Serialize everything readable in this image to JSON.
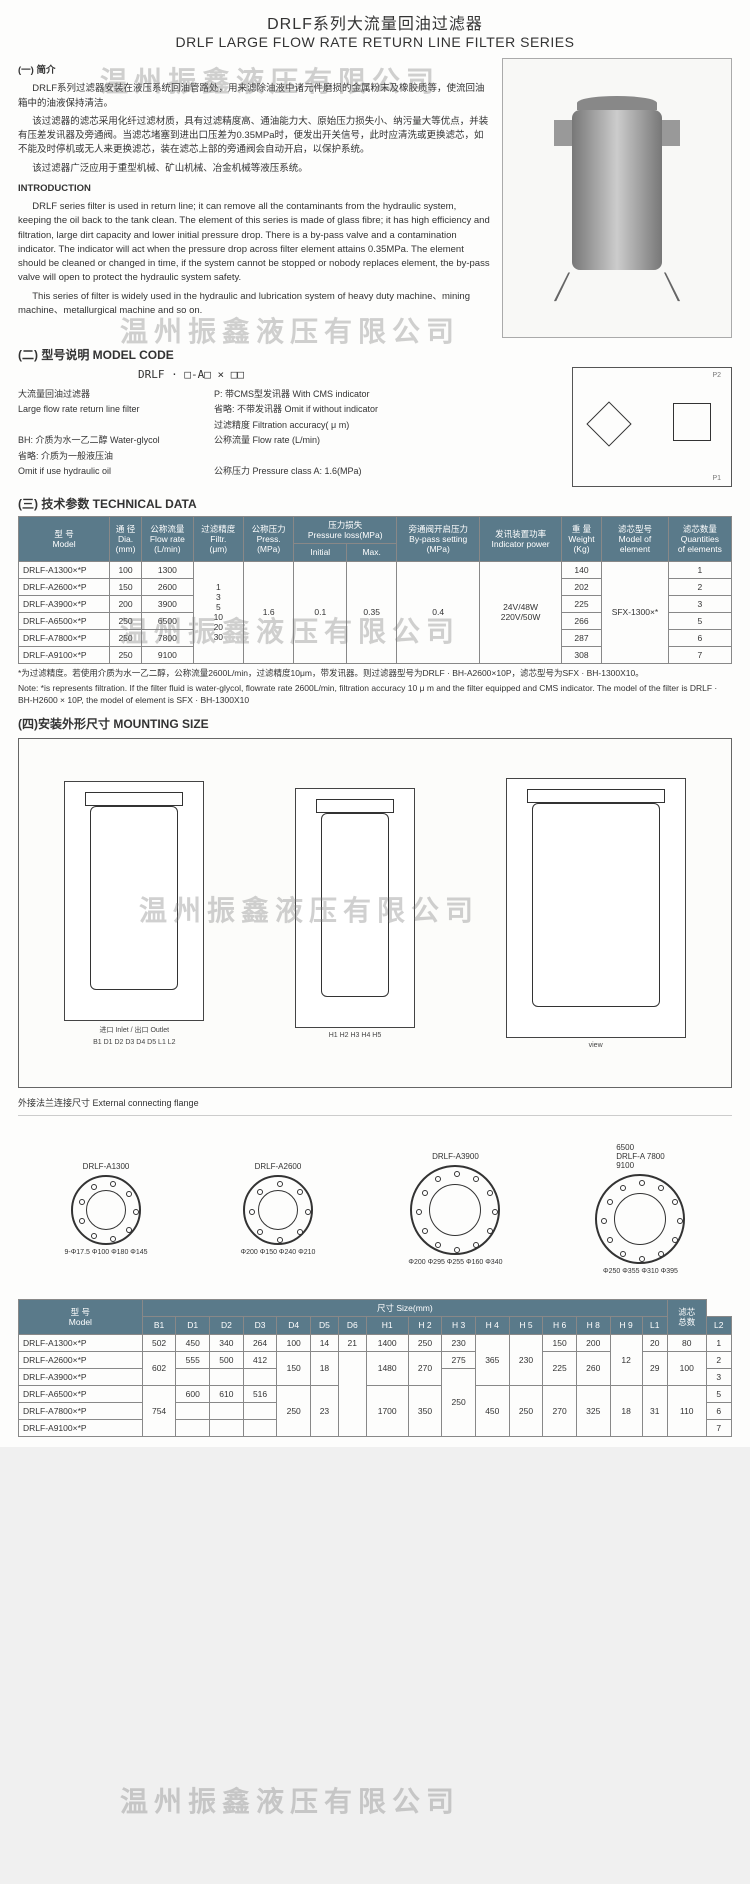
{
  "title": {
    "cn": "DRLF系列大流量回油过滤器",
    "en": "DRLF  LARGE FLOW RATE RETURN LINE FILTER SERIES"
  },
  "watermark": "温州振鑫液压有限公司",
  "section1": {
    "head": "(一) 简介",
    "p1": "DRLF系列过滤器安装在液压系统回油管路处，用来滤除油液中诸元件磨损的金属粉末及橡胶质等，使流回油箱中的油液保持清洁。",
    "p2": "该过滤器的滤芯采用化纤过滤材质，具有过滤精度高、通油能力大、原始压力损失小、纳污量大等优点，并装有压差发讯器及旁通阀。当滤芯堵塞到进出口压差为0.35MPa时，便发出开关信号，此时应清洗或更换滤芯，如不能及时停机或无人来更换滤芯，装在滤芯上部的旁通阀会自动开启，以保护系统。",
    "p3": "该过滤器广泛应用于重型机械、矿山机械、冶金机械等液压系统。",
    "head_en": "INTRODUCTION",
    "pe1": "DRLF series filter is used in return line; it can remove all the contaminants from the hydraulic system, keeping the oil back to the tank clean. The element of this series is made of glass fibre; it has high efficiency and filtration, large dirt capacity and lower initial pressure drop. There is a by-pass valve and a contamination indicator. The indicator will act when the pressure drop across filter element attains 0.35MPa. The element should be cleaned or changed in time, if the system cannot be stopped or nobody replaces element, the by-pass valve will open to protect the hydraulic system safety.",
    "pe2": "This series of filter is widely used in the hydraulic and lubrication system of heavy duty machine、mining machine、metallurgical machine and so on."
  },
  "section2": {
    "head": "(二) 型号说明    MODEL CODE",
    "code": "DRLF · □-A□ × □□",
    "rows": [
      {
        "l": "大流量回油过滤器",
        "r": "P: 带CMS型发讯器  With CMS indicator"
      },
      {
        "l": "Large flow rate return line filter",
        "r": "省略: 不带发讯器  Omit if without indicator"
      },
      {
        "l": "",
        "r": "过滤精度  Filtration accuracy( μ m)"
      },
      {
        "l": "BH: 介质为水一乙二醇  Water-glycol",
        "r": "公称流量  Flow rate (L/min)"
      },
      {
        "l": "省略: 介质为一般液压油",
        "r": ""
      },
      {
        "l": "Omit if use hydraulic oil",
        "r": "公称压力  Pressure class A: 1.6(MPa)"
      }
    ]
  },
  "section3": {
    "head": "(三) 技术参数  TECHNICAL DATA",
    "headers": [
      "型 号\nModel",
      "通 径\nDia.\n(mm)",
      "公称流量\nFlow rate\n(L/min)",
      "过滤精度\nFiltr.\n(μm)",
      "公称压力\nPress.\n(MPa)",
      "压力损失\nPressure loss(MPa)",
      "旁通阀开启压力\nBy-pass setting\n(MPa)",
      "发讯装置功率\nIndicator power",
      "重 量\nWeight\n(Kg)",
      "滤芯型号\nModel of\nelement",
      "滤芯数量\nQuantities\nof elements"
    ],
    "plHeaders": [
      "Initial",
      "Max."
    ],
    "rows": [
      {
        "m": "DRLF-A1300×*P",
        "dia": "100",
        "flow": "1300",
        "wt": "140",
        "qty": "1"
      },
      {
        "m": "DRLF-A2600×*P",
        "dia": "150",
        "flow": "2600",
        "wt": "202",
        "qty": "2"
      },
      {
        "m": "DRLF-A3900×*P",
        "dia": "200",
        "flow": "3900",
        "wt": "225",
        "qty": "3"
      },
      {
        "m": "DRLF-A6500×*P",
        "dia": "250",
        "flow": "6500",
        "wt": "266",
        "qty": "5"
      },
      {
        "m": "DRLF-A7800×*P",
        "dia": "250",
        "flow": "7800",
        "wt": "287",
        "qty": "6"
      },
      {
        "m": "DRLF-A9100×*P",
        "dia": "250",
        "flow": "9100",
        "wt": "308",
        "qty": "7"
      }
    ],
    "filtr": "1\n3\n5\n10\n20\n30",
    "press": "1.6",
    "plInit": "0.1",
    "plMax": "0.35",
    "bypass": "0.4",
    "power": "24V/48W\n220V/50W",
    "element": "SFX-1300×*",
    "note_cn": "*为过滤精度。若使用介质为水一乙二醇，公称流量2600L/min，过滤精度10μm，带发讯器。则过滤器型号为DRLF · BH-A2600×10P，滤芯型号为SFX · BH-1300X10。",
    "note_en": "Note: *is represents filtration. If the filter fluid is water-glycol, flowrate rate 2600L/min, filtration accuracy 10 μ m and the filter equipped and  CMS indicator. The model of the filter is DRLF · BH-H2600 × 10P, the model of element is SFX · BH-1300X10"
  },
  "section4": {
    "head": "(四)安装外形尺寸    MOUNTING SIZE",
    "flange_label": "外接法兰连接尺寸      External connecting flange",
    "flanges": [
      {
        "label": "DRLF-A1300",
        "dims": [
          "9-Φ17.5",
          "Φ100",
          "Φ180",
          "Φ145"
        ]
      },
      {
        "label": "DRLF-A2600",
        "dims": [
          "Φ200",
          "Φ150",
          "Φ240",
          "Φ210"
        ]
      },
      {
        "label": "DRLF-A3900",
        "dims": [
          "Φ200",
          "Φ295",
          "Φ255",
          "Φ160",
          "Φ340"
        ]
      },
      {
        "label": "6500\nDRLF-A 7800\n9100",
        "dims": [
          "Φ250",
          "Φ355",
          "Φ310",
          "Φ395"
        ]
      }
    ]
  },
  "section5": {
    "headers": [
      "型 号\nModel",
      "B1",
      "D1",
      "D2",
      "D3",
      "D4",
      "D5",
      "D6",
      "H1",
      "H 2",
      "H 3",
      "H 4",
      "H 5",
      "H 6",
      "H 8",
      "H 9",
      "L1",
      "L2",
      "滤芯\n总数"
    ],
    "sizeLabel": "尺寸 Size(mm)",
    "rows": [
      {
        "m": "DRLF-A1300×*P",
        "b1": "502",
        "d1": "450",
        "d2": "340",
        "d3": "264",
        "d4": "100",
        "d5": "14",
        "d6": "21",
        "h1": "1400",
        "h2": "250",
        "h3": "230",
        "h6": "150",
        "h8": "200",
        "l1": "20",
        "l2": "80",
        "q": "1"
      },
      {
        "m": "DRLF-A2600×*P",
        "b1r": "602",
        "d1": "555",
        "d2": "500",
        "d3": "412",
        "d4r": "150",
        "d5r": "18",
        "h1r": "1480",
        "h3": "275",
        "h6r": "225",
        "h8r": "260",
        "h9r": "12",
        "l1r": "29",
        "l2r": "100",
        "q": "2"
      },
      {
        "m": "DRLF-A3900×*P",
        "h2r": "270",
        "q": "3"
      },
      {
        "m": "DRLF-A6500×*P",
        "b1r3": "754",
        "d1": "600",
        "d2": "610",
        "d3": "516",
        "d4r3": "250",
        "d5": "23",
        "h1r3": "1700",
        "h2r3": "350",
        "h3r": "250",
        "h4": "365",
        "h5": "230",
        "h6r3": "270",
        "h8r3": "325",
        "h9r3": "18",
        "l1r3": "31",
        "l2r3": "110",
        "q": "5"
      },
      {
        "m": "DRLF-A7800×*P",
        "h33": "350",
        "h43": "450",
        "h53": "250",
        "q": "6"
      },
      {
        "m": "DRLF-A9100×*P",
        "q": "7"
      }
    ]
  }
}
